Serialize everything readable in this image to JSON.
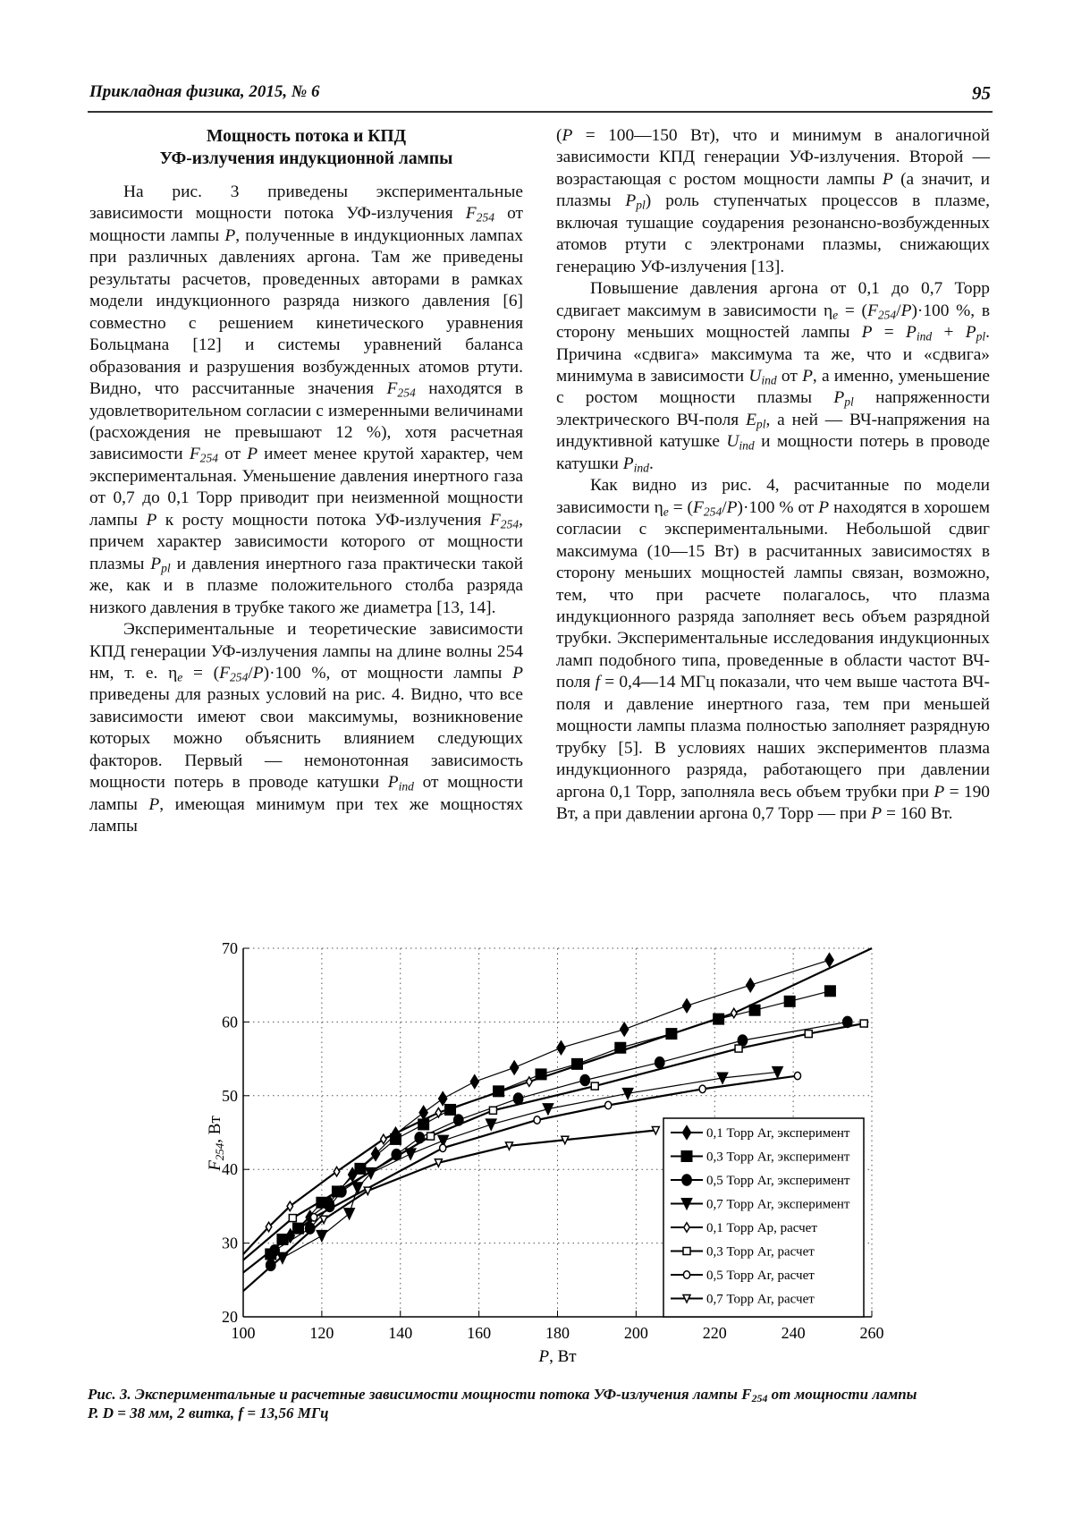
{
  "header": {
    "journal": "Прикладная физика, 2015, № 6",
    "page_number": "95"
  },
  "section": {
    "title_line1": "Мощность потока и КПД",
    "title_line2": "УФ-излучения индукционной лампы"
  },
  "left_column": [
    [
      "На рис. 3 приведены экспериментальные зависимости мощности потока УФ-излучения ",
      {
        "v": "F",
        "s": "254"
      },
      " от мощности лампы ",
      {
        "v": "P"
      },
      ", полученные в индукционных лампах при различных давлениях аргона. Там же приведены результаты расчетов, проведенных авторами в рамках модели индукционного разряда низкого давления [6] совместно с решением кинетического уравнения Больцмана [12] и системы уравнений баланса образования и разрушения возбужденных атомов ртути. Видно, что рассчитанные значения ",
      {
        "v": "F",
        "s": "254"
      },
      " находятся в удовлетворительном согласии с измеренными величинами (расхождения не превышают 12 %), хотя расчетная зависимости ",
      {
        "v": "F",
        "s": "254"
      },
      " от ",
      {
        "v": "P"
      },
      " имеет менее крутой характер, чем экспериментальная. Уменьшение давления инертного газа от 0,7 до 0,1 Торр приводит при неизменной мощности лампы ",
      {
        "v": "P"
      },
      " к росту мощности потока УФ-излучения ",
      {
        "v": "F",
        "s": "254"
      },
      ", причем характер зависимости которого от мощности плазмы ",
      {
        "v": "P",
        "s": "pl"
      },
      " и давления инертного газа практически такой же, как и в плазме положительного столба разряда низкого давления в трубке такого же диаметра [13, 14]."
    ],
    [
      "Экспериментальные и теоретические зависимости КПД генерации УФ-излучения лампы на длине волны 254 нм, т. е. ",
      {
        "n": "η",
        "s": "e"
      },
      " = (",
      {
        "v": "F",
        "s": "254"
      },
      "/",
      {
        "v": "P"
      },
      ")·100 %, от мощности лампы ",
      {
        "v": "P"
      },
      " приведены для разных условий на рис. 4. Видно, что все зависимости имеют свои максимумы, возникновение которых можно объяснить влиянием следующих факторов. Первый — немонотонная зависимость мощности потерь в проводе катушки ",
      {
        "v": "P",
        "s": "ind"
      },
      " от мощности лампы ",
      {
        "v": "P"
      },
      ", имеющая минимум при тех же мощностях лампы"
    ]
  ],
  "right_column": [
    [
      "(",
      {
        "v": "P"
      },
      " = 100—150 Вт), что и минимум в аналогичной зависимости КПД генерации УФ-излучения. Второй — возрастающая с ростом мощности лампы ",
      {
        "v": "P"
      },
      " (а значит, и плазмы ",
      {
        "v": "P",
        "s": "pl"
      },
      ") роль ступенчатых процессов в плазме, включая тушащие соударения резонансно-возбужденных атомов ртути с электронами плазмы, снижающих генерацию УФ-излучения [13]."
    ],
    [
      "Повышение давления аргона от 0,1 до 0,7 Торр сдвигает максимум в зависимости ",
      {
        "n": "η",
        "s": "e"
      },
      " = (",
      {
        "v": "F",
        "s": "254"
      },
      "/",
      {
        "v": "P"
      },
      ")·100 %, в сторону меньших мощностей лампы ",
      {
        "v": "P"
      },
      " = ",
      {
        "v": "P",
        "s": "ind"
      },
      " + ",
      {
        "v": "P",
        "s": "pl"
      },
      ". Причина «сдвига» максимума та же, что и «сдвига» минимума в зависимости ",
      {
        "v": "U",
        "s": "ind"
      },
      " от ",
      {
        "v": "P"
      },
      ", а именно, уменьшение с ростом мощности плазмы ",
      {
        "v": "P",
        "s": "pl"
      },
      " напряженности электрического ВЧ-поля ",
      {
        "v": "E",
        "s": "pl"
      },
      ", а ней — ВЧ-напряжения на индуктивной катушке ",
      {
        "v": "U",
        "s": "ind"
      },
      " и мощности потерь в проводе катушки ",
      {
        "v": "P",
        "s": "ind"
      },
      "."
    ],
    [
      "Как видно из рис. 4, расчитанные по модели зависимости ",
      {
        "n": "η",
        "s": "e"
      },
      " = (",
      {
        "v": "F",
        "s": "254"
      },
      "/",
      {
        "v": "P"
      },
      ")·100 % от ",
      {
        "v": "P"
      },
      " находятся в хорошем согласии с экспериментальными. Небольшой сдвиг максимума (10—15 Вт) в расчитанных зависимостях в сторону меньших мощностей лампы связан, возможно, тем, что при расчете полагалось, что плазма индукционного разряда заполняет весь объем разрядной трубки. Экспериментальные исследования индукционных ламп подобного типа, проведенные в области частот ВЧ-поля ",
      {
        "v": "f"
      },
      " = 0,4—14 МГц показали, что чем выше частота ВЧ-поля и давление инертного газа, тем при меньшей мощности лампы плазма полностью заполняет разрядную трубку [5]. В условиях наших экспериментов плазма индукционного разряда, работающего при давлении аргона 0,1 Торр, заполняла весь объем трубки при ",
      {
        "v": "P"
      },
      " = 190 Вт, а при давлении аргона 0,7 Торр — при ",
      {
        "v": "P"
      },
      " = 160 Вт."
    ]
  ],
  "chart_data": {
    "type": "line",
    "xlabel_var": "P",
    "xlabel_unit": ", Вт",
    "ylabel_var": "F",
    "ylabel_sub": "254",
    "ylabel_unit": ", Вт",
    "xlim": [
      100,
      260
    ],
    "ylim": [
      20,
      70
    ],
    "xticks": [
      100,
      120,
      140,
      160,
      180,
      200,
      220,
      240,
      260
    ],
    "yticks": [
      20,
      30,
      40,
      50,
      60,
      70
    ],
    "grid": true,
    "legend_position": "bottom-right",
    "series": [
      {
        "name": "0,1 Торр Ar, эксперимент",
        "marker": "diamond",
        "filled": true,
        "x": [
          112,
          117,
          122,
          127.8,
          133.7,
          138.8,
          145.9,
          150.8,
          158.9,
          169,
          180.9,
          197,
          212.9,
          229.1,
          249.2
        ],
        "y": [
          31,
          33.5,
          35.5,
          39.3,
          42.1,
          44.8,
          47.7,
          49.6,
          51.9,
          53.8,
          56.5,
          59,
          62.2,
          65,
          68.4
        ]
      },
      {
        "name": "0,3 Торр Ar, эксперимент",
        "marker": "square",
        "filled": true,
        "x": [
          107,
          110,
          114,
          120,
          124,
          129.8,
          138.8,
          145.9,
          152.7,
          165,
          175.8,
          185,
          196,
          209,
          221,
          230.2,
          239.1,
          249.4
        ],
        "y": [
          28.5,
          30.5,
          32,
          35.5,
          37,
          40.1,
          44.1,
          46.1,
          48.1,
          50.6,
          52.9,
          54.3,
          56.5,
          58.4,
          60.4,
          61.6,
          62.8,
          64.2
        ]
      },
      {
        "name": "0,5 Торр Ar, эксперимент",
        "marker": "circle",
        "filled": true,
        "x": [
          107,
          108,
          117,
          122,
          125,
          139,
          144.9,
          154.8,
          170,
          187,
          206,
          227.1,
          253.8
        ],
        "y": [
          27,
          29,
          32,
          35,
          37,
          42,
          44.3,
          46.7,
          49.6,
          52.1,
          54.5,
          57.5,
          60
        ]
      },
      {
        "name": "0,7 Торр Ar, эксперимент",
        "marker": "triangle-down",
        "filled": true,
        "x": [
          110,
          120,
          127,
          129.1,
          132.5,
          142.6,
          150.9,
          163.1,
          177.6,
          197.9,
          222,
          236
        ],
        "y": [
          28,
          31,
          34,
          37.5,
          39.5,
          42.1,
          43.9,
          46.1,
          48.2,
          50.3,
          52.4,
          53.2
        ]
      },
      {
        "name": "0,1 Торр Ар, расчет",
        "marker": "diamond",
        "filled": false,
        "x": [
          100,
          106.5,
          111.9,
          123.8,
          135.7,
          149.7,
          172.8,
          224.9,
          260
        ],
        "y": [
          28.5,
          32.2,
          35,
          39.7,
          44.1,
          47.7,
          51.9,
          61.2,
          70
        ]
      },
      {
        "name": "0,3 Торр Ar, расчет",
        "marker": "square",
        "filled": false,
        "x": [
          100,
          112.6,
          147.7,
          163.6,
          189.5,
          226.1,
          243.9,
          258
        ],
        "y": [
          27.7,
          33.4,
          44.5,
          48,
          51.3,
          56.4,
          58.4,
          59.8
        ]
      },
      {
        "name": "0,5 Торр Ar, расчет",
        "marker": "circle",
        "filled": false,
        "x": [
          100,
          118,
          150.8,
          174.8,
          192.9,
          216.9,
          241.1
        ],
        "y": [
          26,
          33.5,
          42.9,
          46.7,
          48.7,
          50.9,
          52.7
        ]
      },
      {
        "name": "0,7 Торр Ar, расчет",
        "marker": "triangle-down",
        "filled": false,
        "x": [
          100,
          120.5,
          131.7,
          149.7,
          167.7,
          181.9,
          205
        ],
        "y": [
          23.5,
          33.2,
          37.1,
          40.9,
          43.2,
          44,
          45.3
        ]
      }
    ]
  },
  "caption": {
    "line1_a": "Рис. 3. Экспериментальные и расчетные зависимости мощности потока УФ-излучения лампы F",
    "line1_sub": "254",
    "line1_b": " от мощности лампы",
    "line2": "P. D = 38 мм, 2 витка, f = 13,56 МГц"
  }
}
